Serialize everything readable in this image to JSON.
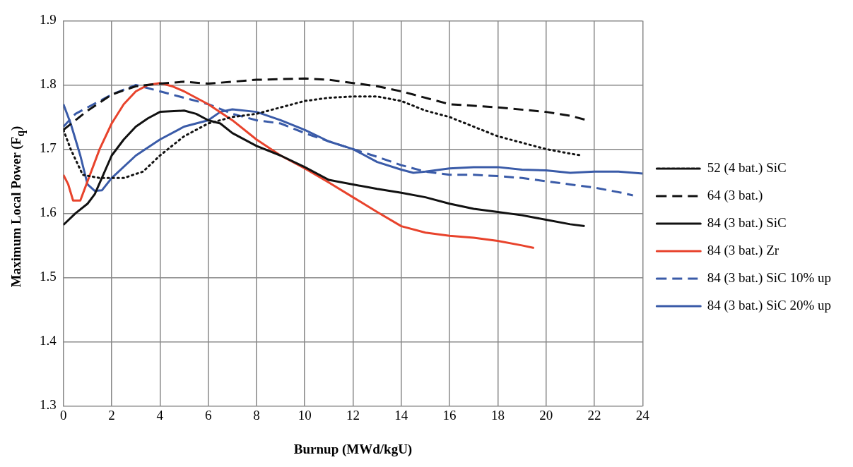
{
  "chart_data": {
    "type": "line",
    "xlabel": "Burnup (MWd/kgU)",
    "ylabel": "Maximum Local Power (F$_{q}$)",
    "xlim": [
      0,
      24
    ],
    "xticks": [
      0,
      2,
      4,
      6,
      8,
      10,
      12,
      14,
      16,
      18,
      20,
      22,
      24
    ],
    "ylim": [
      1.3,
      1.9
    ],
    "yticks": [
      {
        "value": 1.3,
        "label": "1.3"
      },
      {
        "value": 1.4,
        "label": "1.4"
      },
      {
        "value": 1.5,
        "label": "1.5"
      },
      {
        "value": 1.6,
        "label": "1.6"
      },
      {
        "value": 1.7,
        "label": "1.7"
      },
      {
        "value": 1.8,
        "label": "1.8"
      },
      {
        "value": 1.9,
        "label": "1.9"
      }
    ],
    "grid": true,
    "legend": "right",
    "marker": "none",
    "series": [
      {
        "name": "52 (4 bat.) SiC",
        "color": "#111111",
        "line_style": "dotted",
        "x": [
          0,
          0.3,
          0.8,
          1.5,
          2.5,
          3.3,
          4,
          5,
          6,
          7,
          8,
          9,
          10,
          11,
          12,
          13,
          14,
          15,
          16,
          17,
          18,
          19,
          20,
          21,
          21.5
        ],
        "values": [
          1.73,
          1.7,
          1.66,
          1.655,
          1.655,
          1.665,
          1.69,
          1.72,
          1.74,
          1.75,
          1.755,
          1.765,
          1.775,
          1.78,
          1.782,
          1.782,
          1.775,
          1.76,
          1.75,
          1.735,
          1.72,
          1.71,
          1.7,
          1.693,
          1.69
        ]
      },
      {
        "name": "64 (3 bat.)",
        "color": "#111111",
        "line_style": "dashed",
        "x": [
          0,
          0.5,
          1,
          2,
          3,
          4,
          5,
          6,
          7,
          8,
          10,
          11,
          12,
          13,
          14,
          15,
          16,
          18,
          20,
          21,
          21.7
        ],
        "values": [
          1.73,
          1.745,
          1.76,
          1.785,
          1.798,
          1.802,
          1.805,
          1.802,
          1.805,
          1.808,
          1.81,
          1.808,
          1.803,
          1.798,
          1.79,
          1.78,
          1.77,
          1.765,
          1.758,
          1.752,
          1.745
        ]
      },
      {
        "name": "84 (3 bat.) SiC",
        "color": "#111111",
        "line_style": "solid",
        "x": [
          0,
          0.5,
          1,
          1.3,
          2,
          2.5,
          3,
          3.5,
          4,
          5,
          5.5,
          6,
          6.5,
          7,
          8,
          9,
          10,
          11,
          12,
          13,
          14,
          15,
          16,
          17,
          18,
          19,
          20,
          21,
          21.6
        ],
        "values": [
          1.582,
          1.6,
          1.615,
          1.63,
          1.69,
          1.715,
          1.735,
          1.748,
          1.758,
          1.76,
          1.755,
          1.745,
          1.74,
          1.725,
          1.705,
          1.69,
          1.672,
          1.652,
          1.645,
          1.638,
          1.632,
          1.625,
          1.615,
          1.607,
          1.602,
          1.597,
          1.59,
          1.583,
          1.58
        ]
      },
      {
        "name": "84 (3 bat.) Zr",
        "color": "#e8432c",
        "line_style": "solid",
        "x": [
          0,
          0.2,
          0.4,
          0.7,
          1,
          1.5,
          2,
          2.5,
          3,
          3.5,
          4,
          4.5,
          5,
          6,
          7,
          8,
          9,
          10,
          11,
          12,
          13,
          14,
          15,
          16,
          17,
          18,
          19,
          19.5
        ],
        "values": [
          1.66,
          1.645,
          1.62,
          1.62,
          1.65,
          1.7,
          1.74,
          1.77,
          1.79,
          1.8,
          1.803,
          1.798,
          1.79,
          1.77,
          1.745,
          1.715,
          1.69,
          1.67,
          1.648,
          1.625,
          1.602,
          1.58,
          1.57,
          1.565,
          1.562,
          1.557,
          1.55,
          1.546
        ]
      },
      {
        "name": "84 (3 bat.) SiC 10% up",
        "color": "#3a5ba8",
        "line_style": "dashed",
        "x": [
          0,
          0.5,
          1,
          2,
          3,
          4,
          5,
          6,
          7,
          8,
          9,
          10,
          11,
          12,
          13,
          14,
          15,
          16,
          17,
          18,
          19,
          20,
          21,
          22,
          23,
          23.6
        ],
        "values": [
          1.735,
          1.755,
          1.765,
          1.785,
          1.8,
          1.79,
          1.78,
          1.77,
          1.755,
          1.745,
          1.74,
          1.725,
          1.712,
          1.7,
          1.688,
          1.675,
          1.665,
          1.66,
          1.66,
          1.658,
          1.655,
          1.65,
          1.645,
          1.64,
          1.633,
          1.628
        ]
      },
      {
        "name": "84 (3 bat.) SiC 20% up",
        "color": "#3a5ba8",
        "line_style": "solid",
        "x": [
          0,
          0.3,
          0.7,
          1,
          1.3,
          1.6,
          2,
          3,
          4,
          5,
          6,
          6.5,
          7,
          8,
          9,
          10,
          11,
          12,
          13,
          14,
          14.5,
          15,
          16,
          17,
          18,
          19,
          20,
          21,
          22,
          23,
          24
        ],
        "values": [
          1.77,
          1.74,
          1.69,
          1.645,
          1.635,
          1.636,
          1.655,
          1.69,
          1.715,
          1.735,
          1.745,
          1.758,
          1.762,
          1.758,
          1.745,
          1.73,
          1.712,
          1.7,
          1.68,
          1.668,
          1.663,
          1.665,
          1.67,
          1.672,
          1.672,
          1.668,
          1.667,
          1.663,
          1.665,
          1.665,
          1.662
        ]
      }
    ]
  }
}
